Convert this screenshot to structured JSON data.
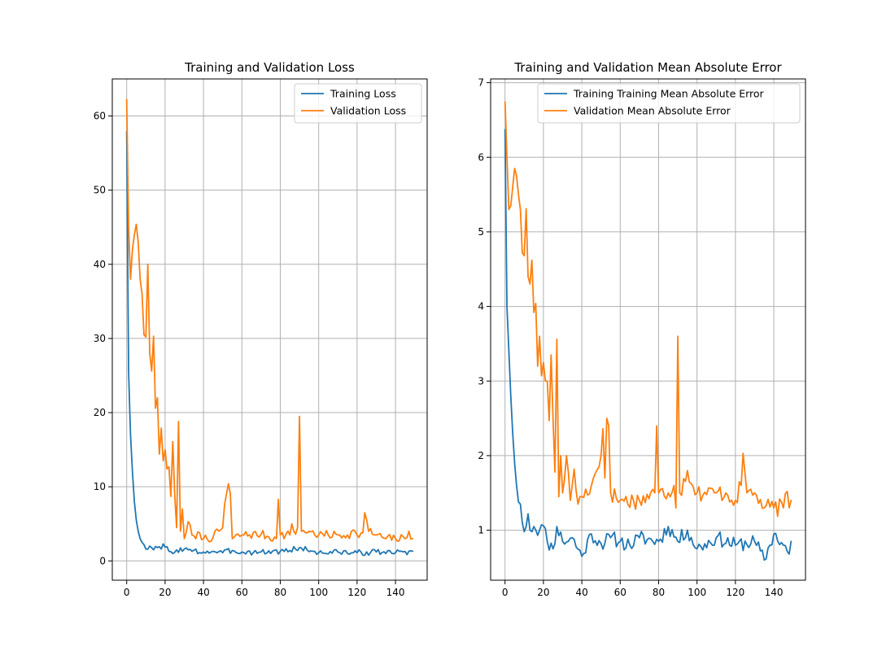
{
  "colors": {
    "series1": "#1f77b4",
    "series2": "#ff7f0e",
    "grid": "#b0b0b0"
  },
  "chart_data": [
    {
      "type": "line",
      "title": "Training and Validation Loss",
      "xlabel": "",
      "ylabel": "",
      "xlim": [
        -7.5,
        156.5
      ],
      "ylim": [
        -2.6,
        65.0
      ],
      "xticks": [
        0,
        20,
        40,
        60,
        80,
        100,
        120,
        140
      ],
      "yticks": [
        0,
        10,
        20,
        30,
        40,
        50,
        60
      ],
      "grid": true,
      "legend_position": "top-right",
      "series": [
        {
          "name": "Training Loss",
          "color": "#1f77b4",
          "anchors": [
            [
              0,
              57.9
            ],
            [
              1,
              25.5
            ],
            [
              2,
              17
            ],
            [
              3,
              12
            ],
            [
              4,
              8
            ],
            [
              5,
              5.5
            ],
            [
              6,
              4
            ],
            [
              7,
              3
            ],
            [
              8,
              2.5
            ],
            [
              9,
              2.2
            ],
            [
              10,
              1.6
            ],
            [
              12,
              2
            ],
            [
              14,
              1.5
            ],
            [
              16,
              1.8
            ],
            [
              18,
              1.6
            ],
            [
              19,
              2.3
            ],
            [
              22,
              1.3
            ],
            [
              24,
              1.0
            ],
            [
              26,
              1.5
            ],
            [
              30,
              1.6
            ],
            [
              34,
              1.3
            ],
            [
              40,
              1.2
            ],
            [
              45,
              1.3
            ],
            [
              50,
              1.1
            ],
            [
              55,
              1.4
            ],
            [
              60,
              1.2
            ],
            [
              70,
              1.2
            ],
            [
              80,
              1.3
            ],
            [
              85,
              1.4
            ],
            [
              90,
              1.8
            ],
            [
              100,
              1.1
            ],
            [
              110,
              1.2
            ],
            [
              120,
              1.1
            ],
            [
              130,
              1.2
            ],
            [
              140,
              1.1
            ],
            [
              149,
              1.3
            ]
          ],
          "noise": 0.4,
          "seed": 3
        },
        {
          "name": "Validation Loss",
          "color": "#ff7f0e",
          "anchors": [
            [
              0,
              62.2
            ],
            [
              1,
              45
            ],
            [
              2,
              38
            ],
            [
              3,
              42
            ],
            [
              4,
              44
            ],
            [
              5,
              45.4
            ],
            [
              6,
              43
            ],
            [
              7,
              38
            ],
            [
              8,
              36
            ],
            [
              9,
              30.5
            ],
            [
              10,
              30.2
            ],
            [
              11,
              40
            ],
            [
              12,
              28
            ],
            [
              13,
              25.6
            ],
            [
              14,
              30.3
            ],
            [
              15,
              20.6
            ],
            [
              16,
              22
            ],
            [
              17,
              14.4
            ],
            [
              18,
              17.9
            ],
            [
              19,
              13.5
            ],
            [
              20,
              15
            ],
            [
              21,
              12.4
            ],
            [
              22,
              12.7
            ],
            [
              23,
              8.7
            ],
            [
              24,
              16.1
            ],
            [
              25,
              9
            ],
            [
              26,
              4.5
            ],
            [
              27,
              18.8
            ],
            [
              28,
              4
            ],
            [
              29,
              7
            ],
            [
              30,
              3
            ],
            [
              32,
              5.3
            ],
            [
              34,
              3.5
            ],
            [
              36,
              3
            ],
            [
              38,
              3.8
            ],
            [
              40,
              3.0
            ],
            [
              45,
              3.2
            ],
            [
              50,
              4.5
            ],
            [
              51,
              7.6
            ],
            [
              53,
              10.4
            ],
            [
              54,
              9
            ],
            [
              55,
              3
            ],
            [
              60,
              3.5
            ],
            [
              70,
              3.6
            ],
            [
              78,
              3
            ],
            [
              79,
              8.3
            ],
            [
              80,
              3.5
            ],
            [
              85,
              3.5
            ],
            [
              86,
              5
            ],
            [
              88,
              3.6
            ],
            [
              89,
              4.5
            ],
            [
              90,
              19.5
            ],
            [
              91,
              4
            ],
            [
              95,
              4
            ],
            [
              100,
              3.5
            ],
            [
              110,
              3.5
            ],
            [
              115,
              3.5
            ],
            [
              119,
              4
            ],
            [
              120,
              3.5
            ],
            [
              123,
              3.8
            ],
            [
              124,
              6.5
            ],
            [
              126,
              4
            ],
            [
              130,
              3.5
            ],
            [
              135,
              3
            ],
            [
              140,
              3
            ],
            [
              145,
              3
            ],
            [
              147,
              4
            ],
            [
              149,
              3
            ]
          ],
          "noise": 0.6,
          "noise_start": 28,
          "seed": 7
        }
      ]
    },
    {
      "type": "line",
      "title": "Training and Validation Mean Absolute Error",
      "xlabel": "",
      "ylabel": "",
      "xlim": [
        -7.5,
        156.5
      ],
      "ylim": [
        0.33,
        7.05
      ],
      "xticks": [
        0,
        20,
        40,
        60,
        80,
        100,
        120,
        140
      ],
      "yticks": [
        1,
        2,
        3,
        4,
        5,
        6,
        7
      ],
      "grid": true,
      "legend_position": "top-right",
      "series": [
        {
          "name": "Training Training Mean Absolute Error",
          "color": "#1f77b4",
          "anchors": [
            [
              0,
              6.37
            ],
            [
              1,
              4
            ],
            [
              2,
              3.4
            ],
            [
              3,
              2.8
            ],
            [
              4,
              2.3
            ],
            [
              5,
              1.9
            ],
            [
              6,
              1.6
            ],
            [
              7,
              1.38
            ],
            [
              8,
              1.35
            ],
            [
              9,
              1.1
            ],
            [
              10,
              0.98
            ],
            [
              12,
              1.22
            ],
            [
              13,
              1.0
            ],
            [
              15,
              1.05
            ],
            [
              18,
              1.0
            ],
            [
              20,
              1.06
            ],
            [
              22,
              0.85
            ],
            [
              25,
              0.75
            ],
            [
              27,
              1.05
            ],
            [
              30,
              0.85
            ],
            [
              35,
              0.9
            ],
            [
              40,
              0.65
            ],
            [
              45,
              0.95
            ],
            [
              50,
              0.82
            ],
            [
              55,
              0.9
            ],
            [
              60,
              0.85
            ],
            [
              65,
              0.8
            ],
            [
              70,
              0.9
            ],
            [
              80,
              0.85
            ],
            [
              85,
              1.05
            ],
            [
              90,
              0.85
            ],
            [
              95,
              1.0
            ],
            [
              100,
              0.75
            ],
            [
              110,
              0.9
            ],
            [
              120,
              0.8
            ],
            [
              130,
              0.85
            ],
            [
              135,
              0.6
            ],
            [
              140,
              0.95
            ],
            [
              145,
              0.8
            ],
            [
              148,
              0.68
            ],
            [
              149,
              0.85
            ]
          ],
          "noise": 0.1,
          "noise_start": 11,
          "seed": 11
        },
        {
          "name": "Validation Mean Absolute Error",
          "color": "#ff7f0e",
          "anchors": [
            [
              0,
              6.74
            ],
            [
              1,
              6.0
            ],
            [
              2,
              5.3
            ],
            [
              3,
              5.35
            ],
            [
              4,
              5.6
            ],
            [
              5,
              5.85
            ],
            [
              6,
              5.75
            ],
            [
              7,
              5.5
            ],
            [
              8,
              5.3
            ],
            [
              9,
              4.72
            ],
            [
              10,
              4.68
            ],
            [
              11,
              5.31
            ],
            [
              12,
              4.4
            ],
            [
              13,
              4.3
            ],
            [
              14,
              4.62
            ],
            [
              15,
              3.92
            ],
            [
              16,
              4.04
            ],
            [
              17,
              3.2
            ],
            [
              18,
              3.6
            ],
            [
              19,
              3.07
            ],
            [
              20,
              3.25
            ],
            [
              21,
              3.0
            ],
            [
              22,
              3.0
            ],
            [
              23,
              2.47
            ],
            [
              24,
              3.35
            ],
            [
              25,
              2.5
            ],
            [
              26,
              1.78
            ],
            [
              27,
              3.56
            ],
            [
              28,
              1.45
            ],
            [
              29,
              2.0
            ],
            [
              30,
              1.5
            ],
            [
              32,
              2.0
            ],
            [
              34,
              1.4
            ],
            [
              36,
              1.82
            ],
            [
              38,
              1.35
            ],
            [
              40,
              1.45
            ],
            [
              45,
              1.6
            ],
            [
              50,
              2.0
            ],
            [
              51,
              2.36
            ],
            [
              52,
              1.7
            ],
            [
              53,
              2.5
            ],
            [
              54,
              2.4
            ],
            [
              55,
              1.5
            ],
            [
              60,
              1.4
            ],
            [
              70,
              1.4
            ],
            [
              78,
              1.5
            ],
            [
              79,
              2.4
            ],
            [
              80,
              1.5
            ],
            [
              85,
              1.5
            ],
            [
              88,
              1.6
            ],
            [
              89,
              1.3
            ],
            [
              90,
              3.6
            ],
            [
              91,
              1.5
            ],
            [
              95,
              1.8
            ],
            [
              100,
              1.5
            ],
            [
              110,
              1.5
            ],
            [
              115,
              1.5
            ],
            [
              120,
              1.4
            ],
            [
              123,
              1.6
            ],
            [
              124,
              2.03
            ],
            [
              126,
              1.5
            ],
            [
              130,
              1.5
            ],
            [
              135,
              1.3
            ],
            [
              140,
              1.3
            ],
            [
              145,
              1.3
            ],
            [
              147,
              1.52
            ],
            [
              148,
              1.3
            ],
            [
              149,
              1.4
            ]
          ],
          "noise": 0.12,
          "noise_start": 28,
          "seed": 17
        }
      ]
    }
  ]
}
